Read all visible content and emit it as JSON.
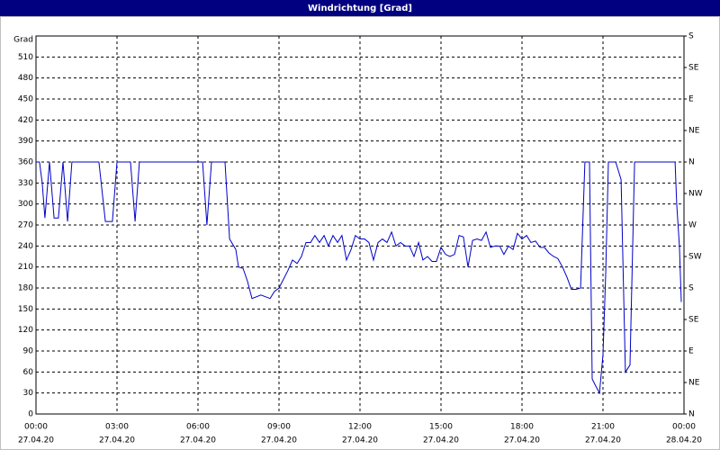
{
  "chart_data": {
    "type": "line",
    "title": "Windrichtung [Grad]",
    "y_label": "Grad",
    "xlim": [
      0,
      24
    ],
    "ylim": [
      0,
      540
    ],
    "y2lim": [
      0,
      540
    ],
    "grid": true,
    "xticks": [
      {
        "value": 0,
        "label": "00:00",
        "date": "27.04.20"
      },
      {
        "value": 3,
        "label": "03:00",
        "date": "27.04.20"
      },
      {
        "value": 6,
        "label": "06:00",
        "date": "27.04.20"
      },
      {
        "value": 9,
        "label": "09:00",
        "date": "27.04.20"
      },
      {
        "value": 12,
        "label": "12:00",
        "date": "27.04.20"
      },
      {
        "value": 15,
        "label": "15:00",
        "date": "27.04.20"
      },
      {
        "value": 18,
        "label": "18:00",
        "date": "27.04.20"
      },
      {
        "value": 21,
        "label": "21:00",
        "date": "27.04.20"
      },
      {
        "value": 24,
        "label": "00:00",
        "date": "28.04.20"
      }
    ],
    "yticks": [
      0,
      30,
      60,
      90,
      120,
      150,
      180,
      210,
      240,
      270,
      300,
      330,
      360,
      390,
      420,
      450,
      480,
      510
    ],
    "y2ticks": [
      {
        "value": 0,
        "label": "N"
      },
      {
        "value": 45,
        "label": "NE"
      },
      {
        "value": 90,
        "label": "E"
      },
      {
        "value": 135,
        "label": "SE"
      },
      {
        "value": 180,
        "label": "S"
      },
      {
        "value": 225,
        "label": "SW"
      },
      {
        "value": 270,
        "label": "W"
      },
      {
        "value": 315,
        "label": "NW"
      },
      {
        "value": 360,
        "label": "N"
      },
      {
        "value": 405,
        "label": "NE"
      },
      {
        "value": 450,
        "label": "E"
      },
      {
        "value": 495,
        "label": "SE"
      },
      {
        "value": 540,
        "label": "S"
      }
    ],
    "x": [
      0,
      0.13,
      0.23,
      0.33,
      0.5,
      0.67,
      0.83,
      1.0,
      1.17,
      1.33,
      2.33,
      2.57,
      2.83,
      3.0,
      3.5,
      3.67,
      3.83,
      6.17,
      6.33,
      6.5,
      7.0,
      7.17,
      7.4,
      7.5,
      7.67,
      7.83,
      8.0,
      8.33,
      8.67,
      8.83,
      9.0,
      9.33,
      9.5,
      9.67,
      9.83,
      10.0,
      10.17,
      10.33,
      10.5,
      10.67,
      10.83,
      11.0,
      11.17,
      11.33,
      11.5,
      11.67,
      11.83,
      12.0,
      12.17,
      12.33,
      12.5,
      12.67,
      12.83,
      13.0,
      13.17,
      13.33,
      13.5,
      13.67,
      13.83,
      14.0,
      14.17,
      14.33,
      14.5,
      14.67,
      14.83,
      15.0,
      15.17,
      15.33,
      15.5,
      15.67,
      15.83,
      16.0,
      16.17,
      16.33,
      16.5,
      16.67,
      16.83,
      17.0,
      17.17,
      17.33,
      17.5,
      17.67,
      17.83,
      18.0,
      18.17,
      18.33,
      18.5,
      18.67,
      18.83,
      19.0,
      19.17,
      19.33,
      19.5,
      19.67,
      19.83,
      20.0,
      20.17,
      20.33,
      20.5,
      20.6,
      20.73,
      20.87,
      21.0,
      21.1,
      21.2,
      21.47,
      21.67,
      21.83,
      22.0,
      22.17,
      23.67,
      23.73,
      23.83,
      23.9
    ],
    "series": [
      {
        "name": "Windrichtung",
        "color": "#0000c8",
        "values": [
          360,
          360,
          330,
          280,
          360,
          280,
          280,
          360,
          275,
          360,
          360,
          275,
          275,
          360,
          360,
          275,
          360,
          360,
          270,
          360,
          360,
          250,
          235,
          210,
          208,
          190,
          165,
          170,
          165,
          175,
          180,
          205,
          220,
          215,
          225,
          245,
          245,
          255,
          245,
          255,
          240,
          255,
          245,
          255,
          220,
          235,
          255,
          250,
          250,
          245,
          220,
          245,
          250,
          245,
          260,
          240,
          245,
          240,
          240,
          225,
          245,
          220,
          225,
          218,
          218,
          238,
          228,
          225,
          228,
          255,
          253,
          210,
          248,
          250,
          248,
          260,
          238,
          240,
          240,
          228,
          240,
          235,
          258,
          250,
          255,
          245,
          247,
          238,
          238,
          230,
          225,
          222,
          210,
          195,
          178,
          178,
          180,
          360,
          360,
          50,
          40,
          30,
          85,
          200,
          360,
          360,
          335,
          60,
          70,
          360,
          360,
          300,
          240,
          160
        ]
      }
    ]
  }
}
